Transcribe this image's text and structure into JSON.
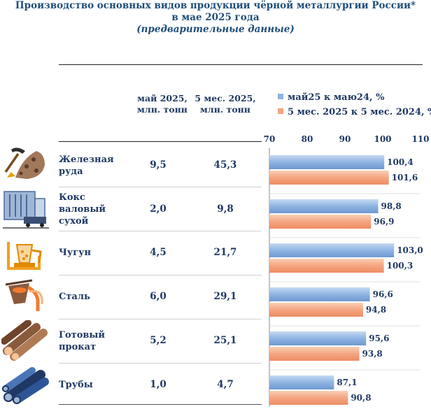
{
  "header": {
    "title": "Производство основных видов продукции чёрной металлургии России*",
    "subtitle": "в мае 2025 года",
    "note": "(предварительные данные)"
  },
  "columns": {
    "col1": "май 2025, млн. тонн",
    "col2": "5 мес. 2025, млн. тонн"
  },
  "rows": [
    {
      "label": "Железная руда",
      "may": "9,5",
      "ytd": "45,3",
      "icon": "mining-pickaxe-icon"
    },
    {
      "label": "Кокс валовый сухой",
      "may": "2,0",
      "ytd": "9,8",
      "icon": "coke-oven-icon"
    },
    {
      "label": "Чугун",
      "may": "4,5",
      "ytd": "21,7",
      "icon": "pig-iron-ladle-icon"
    },
    {
      "label": "Сталь",
      "may": "6,0",
      "ytd": "29,1",
      "icon": "steel-pouring-icon"
    },
    {
      "label": "Готовый прокат",
      "may": "5,2",
      "ytd": "25,1",
      "icon": "rolled-logs-icon"
    },
    {
      "label": "Трубы",
      "may": "1,0",
      "ytd": "4,7",
      "icon": "pipes-icon"
    }
  ],
  "chart_data": {
    "type": "bar",
    "orientation": "horizontal",
    "categories": [
      "Железная руда",
      "Кокс валовый сухой",
      "Чугун",
      "Сталь",
      "Готовый прокат",
      "Трубы"
    ],
    "series": [
      {
        "name": "май25 к маю24, %",
        "values": [
          100.4,
          98.8,
          103.0,
          96.6,
          95.6,
          87.1
        ],
        "labels": [
          "100,4",
          "98,8",
          "103,0",
          "96,6",
          "95,6",
          "87,1"
        ],
        "color": "#8eb4e3"
      },
      {
        "name": "5 мес. 2025 к 5 мес. 2024, %",
        "values": [
          101.6,
          96.9,
          100.3,
          94.8,
          93.8,
          90.8
        ],
        "labels": [
          "101,6",
          "96,9",
          "100,3",
          "94,8",
          "93,8",
          "90,8"
        ],
        "color": "#f4a582"
      }
    ],
    "xlim": [
      70,
      110
    ],
    "ticks": [
      "70",
      "80",
      "90",
      "100",
      "110"
    ],
    "legend_position": "top",
    "grid": false
  }
}
